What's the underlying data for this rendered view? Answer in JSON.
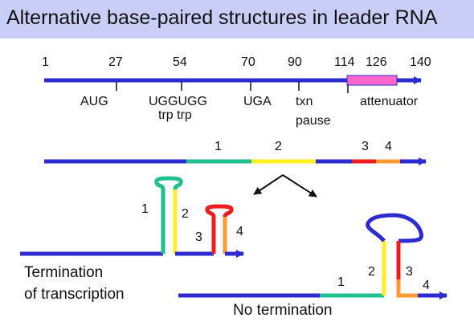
{
  "title": "Alternative base-paired structures in leader RNA",
  "positions": [
    "1",
    "27",
    "54",
    "70",
    "90",
    "114",
    "126",
    "140"
  ],
  "features": {
    "aug": "AUG",
    "uggugg": "UGGUGG",
    "trp": "trp trp",
    "uga": "UGA",
    "txn": "txn",
    "pause": "pause",
    "attenuator": "attenuator"
  },
  "regions": [
    "1",
    "2",
    "3",
    "4"
  ],
  "left_structure": {
    "caption_line1": "Termination",
    "caption_line2": "of transcription"
  },
  "right_structure": {
    "caption": "No termination"
  },
  "colors": {
    "backbone": "#2b2bd0",
    "region1": "#1fbf8f",
    "region2": "#ffee22",
    "region3": "#ee1c1c",
    "region4": "#ff9933",
    "attenuator_box": "#ff66cc",
    "title_bg": "#c8cef5"
  }
}
